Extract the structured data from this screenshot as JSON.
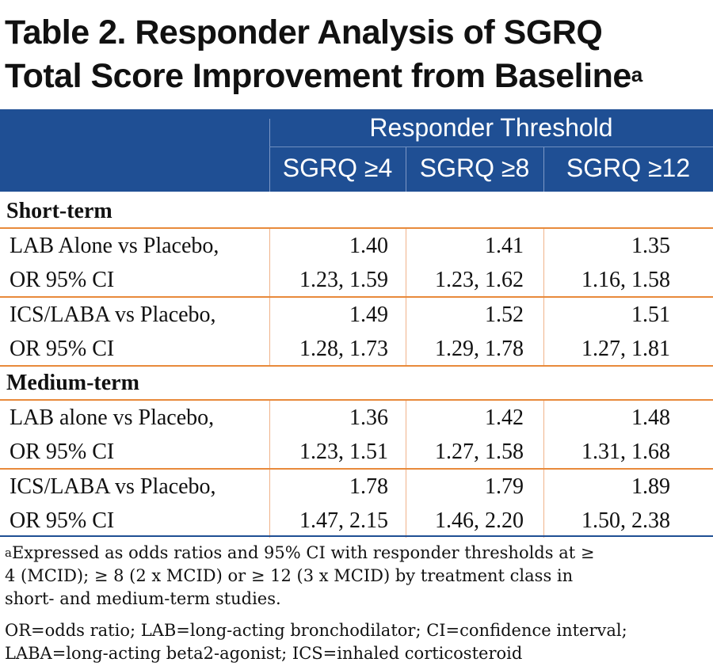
{
  "title": {
    "line1": "Table 2. Responder Analysis of SGRQ",
    "line2": "Total Score Improvement from Baseline",
    "sup": "a"
  },
  "header": {
    "span": "Responder Threshold",
    "columns": [
      "SGRQ ≥4",
      "SGRQ ≥8",
      "SGRQ ≥12"
    ]
  },
  "sections": [
    {
      "name": "Short-term",
      "rows": [
        {
          "label1": "LAB Alone vs Placebo,",
          "label2": "OR 95% CI",
          "or": [
            "1.40",
            "1.41",
            "1.35"
          ],
          "ci": [
            "1.23, 1.59",
            "1.23, 1.62",
            "1.16, 1.58"
          ]
        },
        {
          "label1": "ICS/LABA vs Placebo,",
          "label2": "OR 95% CI",
          "or": [
            "1.49",
            "1.52",
            "1.51"
          ],
          "ci": [
            "1.28, 1.73",
            "1.29, 1.78",
            "1.27, 1.81"
          ]
        }
      ]
    },
    {
      "name": "Medium-term",
      "rows": [
        {
          "label1": "LAB alone vs Placebo,",
          "label2": "OR 95% CI",
          "or": [
            "1.36",
            "1.42",
            "1.48"
          ],
          "ci": [
            "1.23, 1.51",
            "1.27, 1.58",
            "1.31, 1.68"
          ]
        },
        {
          "label1": "ICS/LABA vs Placebo,",
          "label2": "OR 95% CI",
          "or": [
            "1.78",
            "1.79",
            "1.89"
          ],
          "ci": [
            "1.47, 2.15",
            "1.46, 2.20",
            "1.50, 2.38"
          ]
        }
      ]
    }
  ],
  "footnotes": {
    "a_sup": "a",
    "a_line1": "Expressed as odds ratios and 95% CI with responder thresholds at ≥",
    "a_line2": "4 (MCID); ≥ 8 (2 x MCID) or ≥ 12 (3 x MCID) by treatment class in",
    "a_line3": "short- and medium-term studies.",
    "abbr_line1": "OR=odds ratio; LAB=long-acting bronchodilator; CI=confidence interval;",
    "abbr_line2": "LABA=long-acting beta2-agonist; ICS=inhaled corticosteroid"
  },
  "colors": {
    "header_bg": "#1f4f94",
    "rule": "#e88a3b",
    "cell_divider": "#f0b38a"
  }
}
